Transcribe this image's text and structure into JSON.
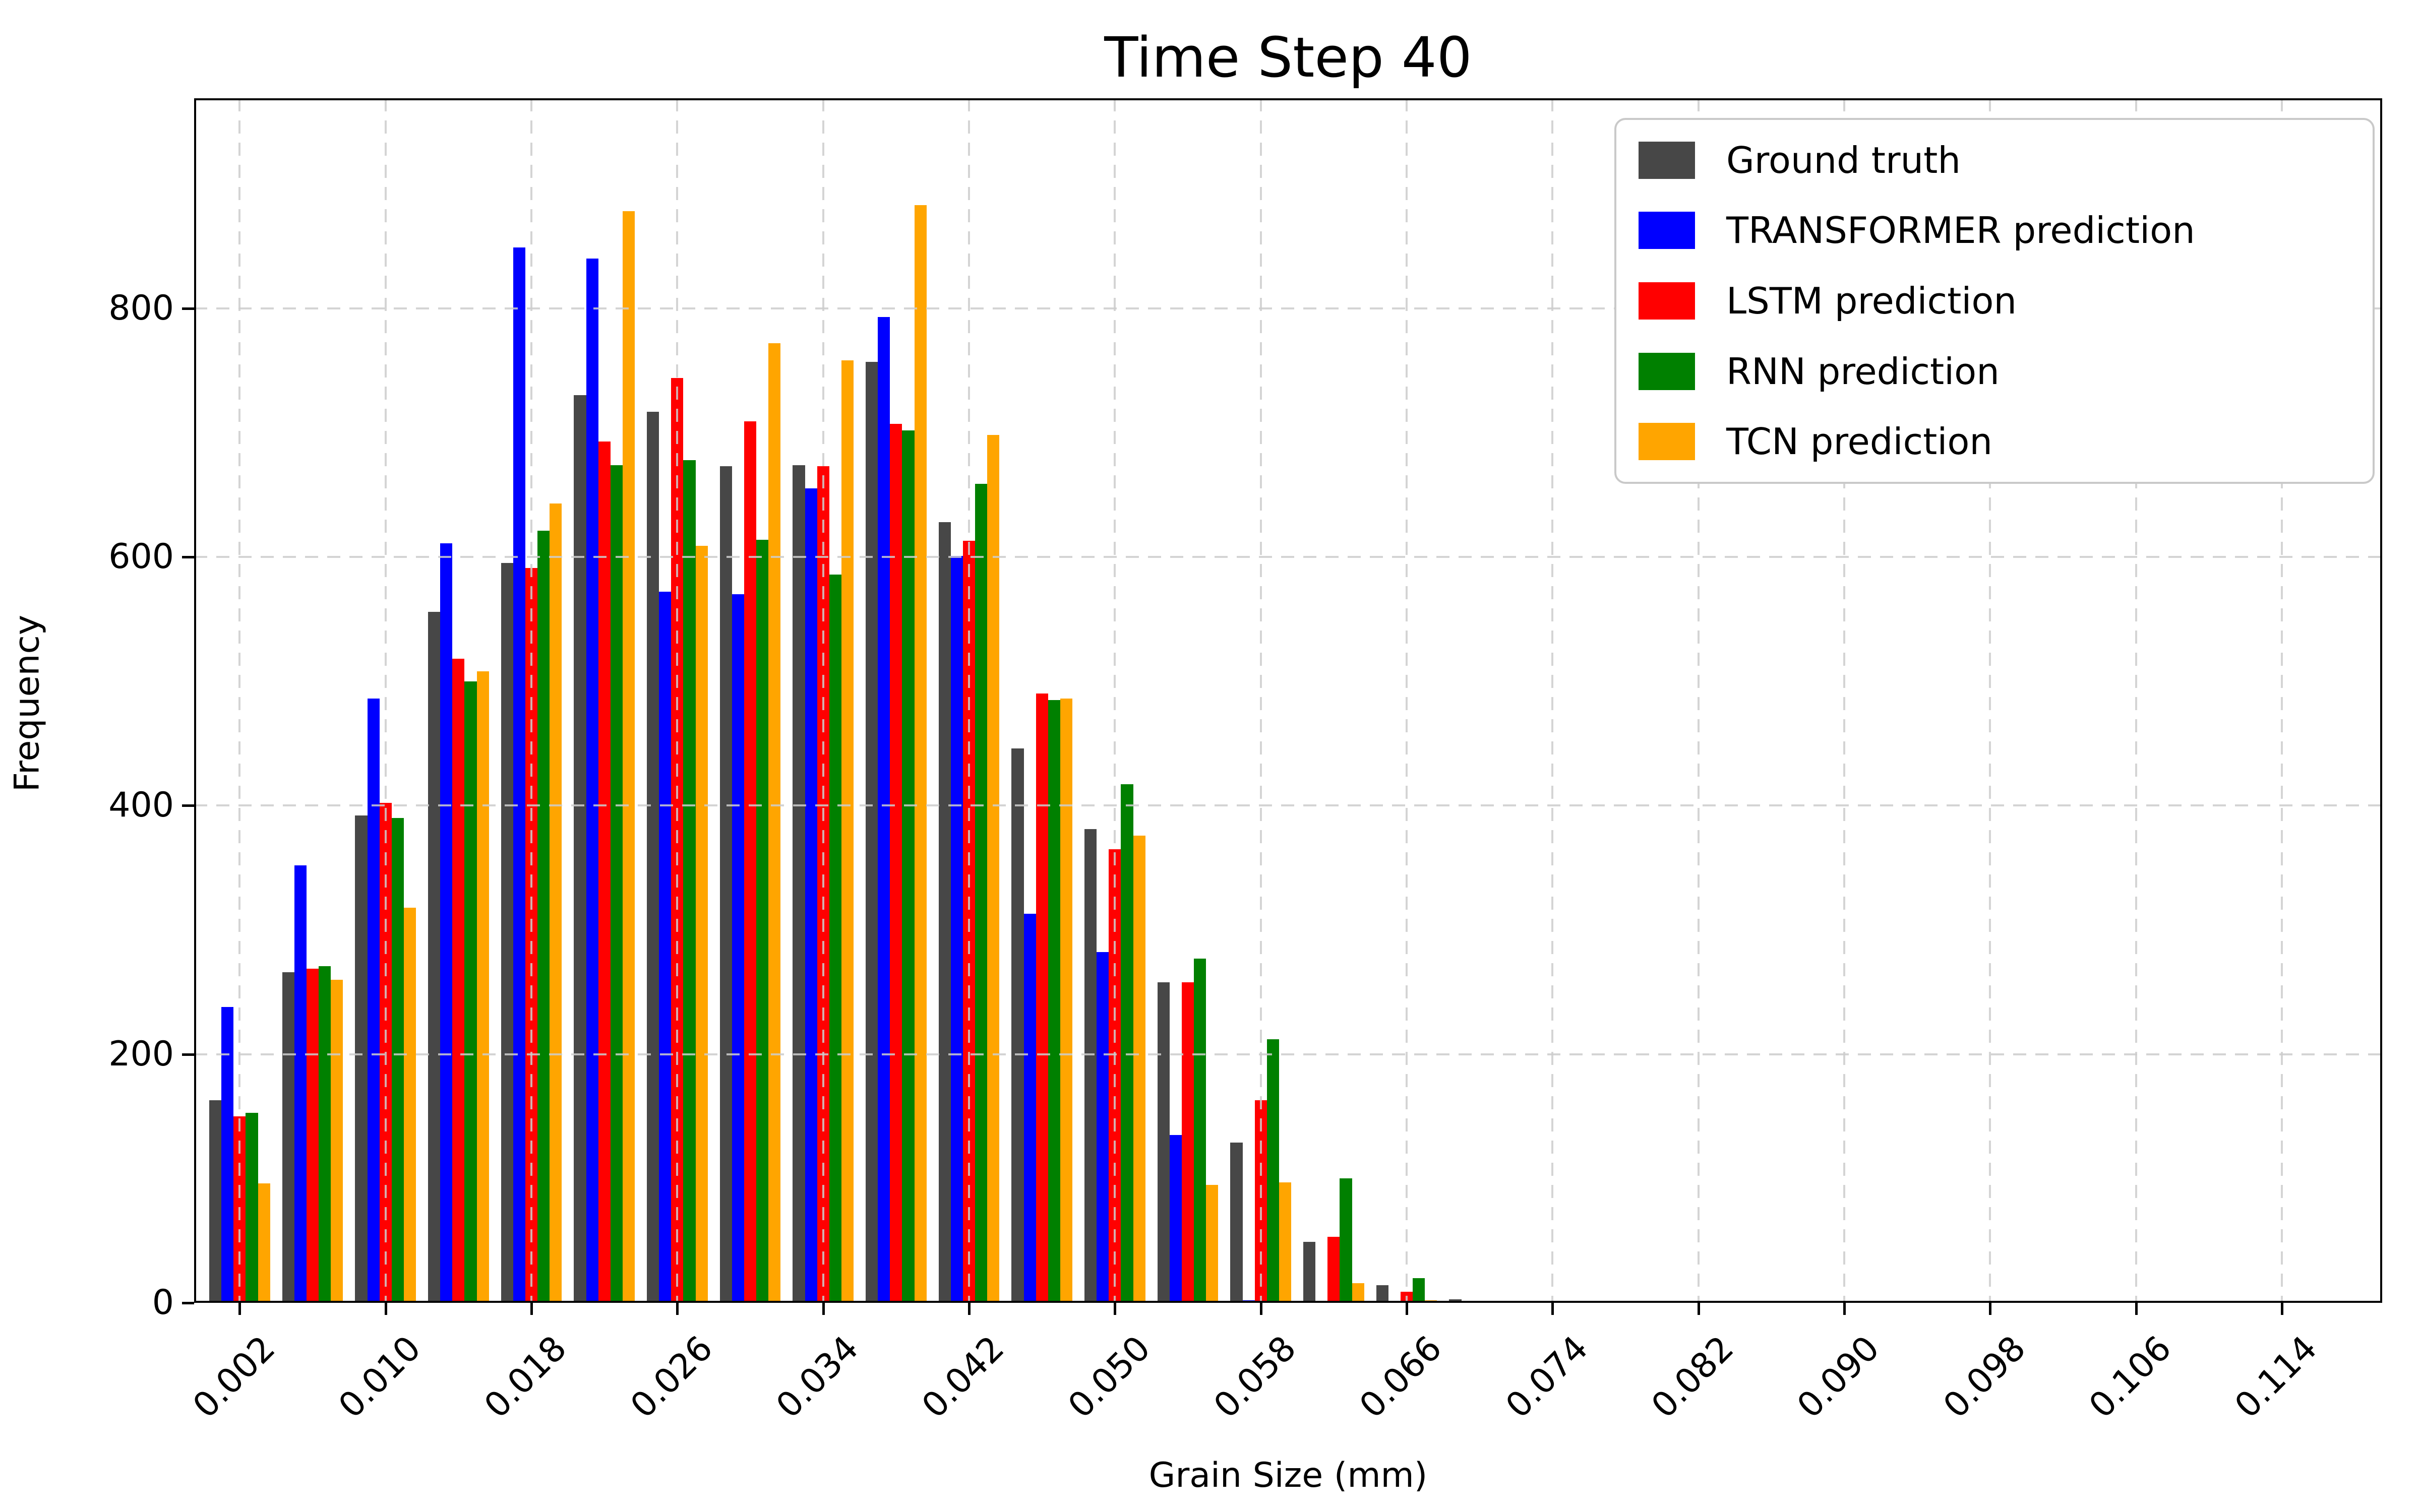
{
  "title": "Time Step 40",
  "axes": {
    "xlabel": "Grain Size (mm)",
    "ylabel": "Frequency",
    "y_ticks": [
      0,
      200,
      400,
      600,
      800
    ],
    "x_ticks": [
      "0.002",
      "0.010",
      "0.018",
      "0.026",
      "0.034",
      "0.042",
      "0.050",
      "0.058",
      "0.066",
      "0.074",
      "0.082",
      "0.090",
      "0.098",
      "0.106",
      "0.114"
    ],
    "x_tick_values": [
      0.002,
      0.01,
      0.018,
      0.026,
      0.034,
      0.042,
      0.05,
      0.058,
      0.066,
      0.074,
      0.082,
      0.09,
      0.098,
      0.106,
      0.114
    ],
    "ylim": [
      0,
      969
    ],
    "xlim": [
      -0.0005,
      0.1195
    ],
    "grid": true,
    "grid_style": "dashed"
  },
  "legend": {
    "position": "upper right",
    "items": [
      {
        "label": "Ground truth",
        "color": "#474747"
      },
      {
        "label": "TRANSFORMER prediction",
        "color": "#0000ff"
      },
      {
        "label": "LSTM prediction",
        "color": "#ff0000"
      },
      {
        "label": "RNN prediction",
        "color": "#008000"
      },
      {
        "label": "TCN prediction",
        "color": "#ffa500"
      }
    ]
  },
  "chart_data": {
    "type": "bar",
    "title": "Time Step 40",
    "xlabel": "Grain Size (mm)",
    "ylabel": "Frequency",
    "bin_width": 0.004,
    "bar_relative_width": 0.835,
    "categories": [
      0.002,
      0.006,
      0.01,
      0.014,
      0.018,
      0.022,
      0.026,
      0.03,
      0.034,
      0.038,
      0.042,
      0.046,
      0.05,
      0.054,
      0.058,
      0.062,
      0.066,
      0.07
    ],
    "series": [
      {
        "name": "Ground truth",
        "color": "#474747",
        "values": [
          163,
          266,
          392,
          556,
          595,
          730,
          717,
          673,
          674,
          757,
          628,
          446,
          381,
          258,
          129,
          49,
          14,
          3
        ]
      },
      {
        "name": "TRANSFORMER prediction",
        "color": "#0000ff",
        "values": [
          238,
          352,
          486,
          611,
          849,
          840,
          572,
          570,
          655,
          793,
          601,
          313,
          282,
          135,
          2,
          0,
          0,
          0
        ]
      },
      {
        "name": "LSTM prediction",
        "color": "#ff0000",
        "values": [
          150,
          269,
          402,
          518,
          591,
          693,
          744,
          709,
          673,
          707,
          613,
          490,
          365,
          258,
          163,
          53,
          9,
          0
        ]
      },
      {
        "name": "RNN prediction",
        "color": "#008000",
        "values": [
          153,
          271,
          390,
          500,
          621,
          674,
          678,
          614,
          586,
          702,
          659,
          485,
          417,
          277,
          212,
          100,
          20,
          1
        ]
      },
      {
        "name": "TCN prediction",
        "color": "#ffa500",
        "values": [
          96,
          260,
          318,
          508,
          643,
          878,
          609,
          772,
          758,
          883,
          698,
          486,
          376,
          95,
          97,
          16,
          2,
          0
        ]
      }
    ]
  }
}
